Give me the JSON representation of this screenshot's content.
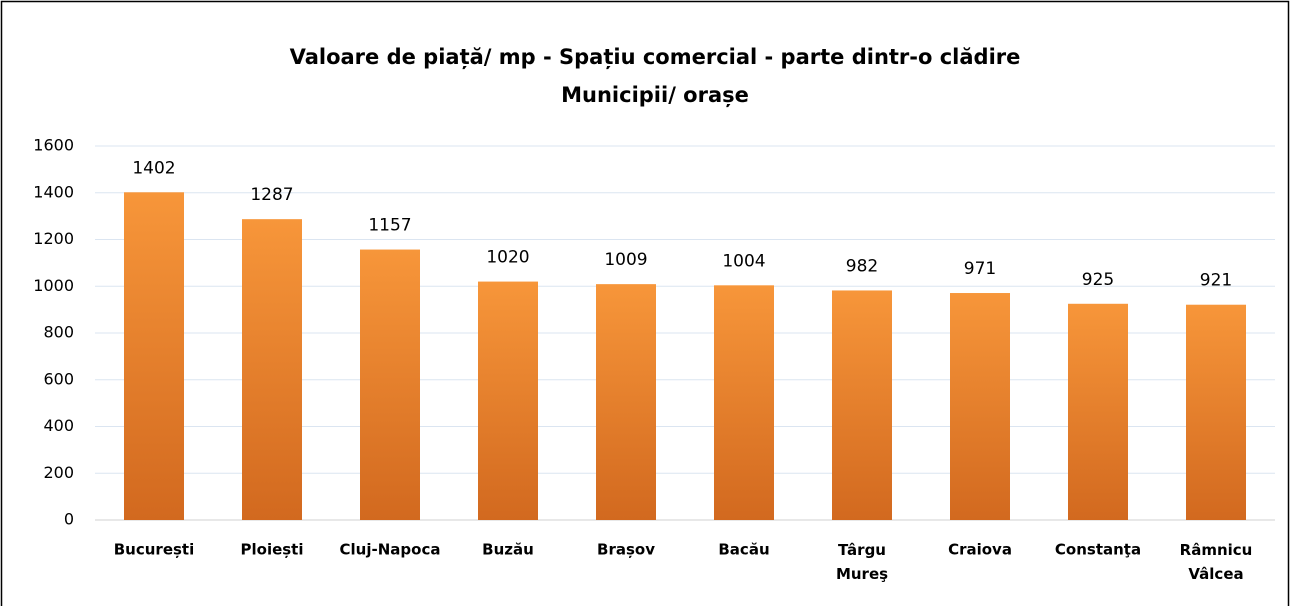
{
  "chart_data": {
    "type": "bar",
    "title": [
      "Valoare de piață/ mp - Spațiu comercial - parte dintr-o clădire",
      "Municipii/ orașe"
    ],
    "categories": [
      "București",
      "Ploiești",
      "Cluj-Napoca",
      "Buzău",
      "Brașov",
      "Bacău",
      "Târgu Mureş",
      "Craiova",
      "Constanţa",
      "Râmnicu Vâlcea"
    ],
    "values": [
      1402,
      1287,
      1157,
      1020,
      1009,
      1004,
      982,
      971,
      925,
      921
    ],
    "color": "#f7963a",
    "ylim": [
      0,
      1600
    ],
    "yticks": [
      0,
      200,
      400,
      600,
      800,
      1000,
      1200,
      1400,
      1600
    ],
    "grid": true
  }
}
